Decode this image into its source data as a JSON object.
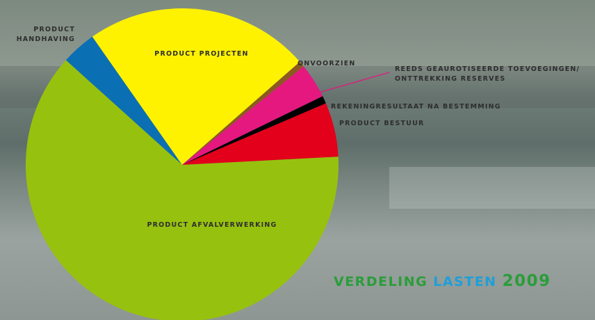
{
  "chart_data": {
    "type": "pie",
    "title_parts": [
      {
        "text": "VERDELING",
        "color": "#2a9d3a"
      },
      {
        "text": "LASTEN",
        "color": "#1e9fd8"
      },
      {
        "text": "2009",
        "color": "#2a9d3a"
      }
    ],
    "categories": [
      "PRODUCT AFVALVERWERKING",
      "PRODUCT HANDHAVING",
      "PRODUCT PROJECTEN",
      "ONVOORZIEN",
      "REEDS GEAUROTISEERDE TOEVOEGINGEN/ ONTTREKKING RESERVES",
      "REKENINGRESULTAAT NA BESTEMMING",
      "PRODUCT BESTUUR"
    ],
    "values": [
      62.5,
      3.6,
      23.3,
      0.6,
      3.6,
      0.8,
      5.6
    ],
    "colors": [
      "#97c10f",
      "#0b6fb4",
      "#fff200",
      "#8c5a1f",
      "#e4187f",
      "#000000",
      "#e2001a"
    ]
  }
}
